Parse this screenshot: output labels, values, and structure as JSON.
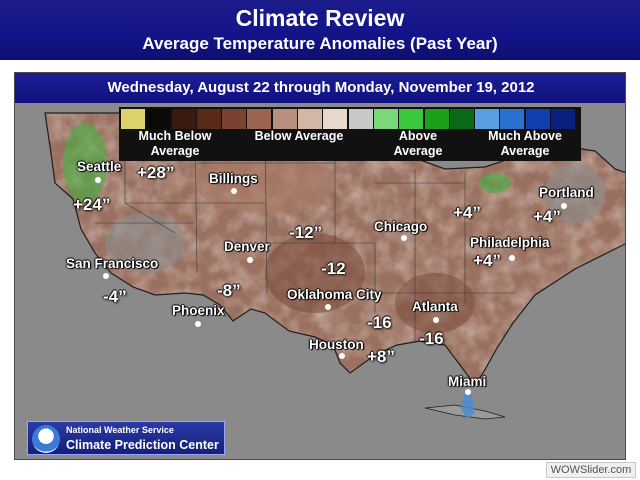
{
  "header": {
    "title": "Climate Review",
    "subtitle": "Average Temperature Anomalies (Past Year)"
  },
  "date_range": "Wednesday, August 22 through Monday, November 19, 2012",
  "legend": {
    "colors": [
      "#dcd26a",
      "#0a0a0a",
      "#3a1a10",
      "#5a2a18",
      "#7a4230",
      "#9a6450",
      "#b8907e",
      "#d4b6a6",
      "#e8d8cc",
      "#c8c8c8",
      "#7ad87a",
      "#3cc83c",
      "#1aa01a",
      "#0a6a1a",
      "#5aa0e0",
      "#2a70d0",
      "#1040b0",
      "#0a2080"
    ],
    "labels": [
      {
        "id": "much-below",
        "text": "Much Below Average"
      },
      {
        "id": "below",
        "text": "Below Average"
      },
      {
        "id": "above",
        "text": "Above Average"
      },
      {
        "id": "much-above",
        "text": "Much Above Average"
      }
    ]
  },
  "cities": [
    {
      "id": "seattle",
      "name": "Seattle"
    },
    {
      "id": "billings",
      "name": "Billings"
    },
    {
      "id": "portland",
      "name": "Portland"
    },
    {
      "id": "san-francisco",
      "name": "San Francisco"
    },
    {
      "id": "denver",
      "name": "Denver"
    },
    {
      "id": "chicago",
      "name": "Chicago"
    },
    {
      "id": "philadelphia",
      "name": "Philadelphia"
    },
    {
      "id": "oklahoma-city",
      "name": "Oklahoma City"
    },
    {
      "id": "phoenix",
      "name": "Phoenix"
    },
    {
      "id": "atlanta",
      "name": "Atlanta"
    },
    {
      "id": "houston",
      "name": "Houston"
    },
    {
      "id": "miami",
      "name": "Miami"
    }
  ],
  "anomalies": [
    {
      "id": "pacific-nw-north",
      "value": "+28”"
    },
    {
      "id": "pacific-nw-coast",
      "value": "+24”"
    },
    {
      "id": "california",
      "value": "-4”"
    },
    {
      "id": "southwest",
      "value": "-8”"
    },
    {
      "id": "central-plains",
      "value": "-12”"
    },
    {
      "id": "southern-plains",
      "value": "-12"
    },
    {
      "id": "mid-south",
      "value": "-16"
    },
    {
      "id": "southeast",
      "value": "-16"
    },
    {
      "id": "gulf-coast",
      "value": "+8”"
    },
    {
      "id": "northeast-inland",
      "value": "+4”"
    },
    {
      "id": "new-england",
      "value": "+4”"
    },
    {
      "id": "mid-atlantic",
      "value": "+4”"
    }
  ],
  "badge": {
    "line1": "National Weather Service",
    "line2": "Climate Prediction Center"
  },
  "watermark": "WOWSlider.com"
}
